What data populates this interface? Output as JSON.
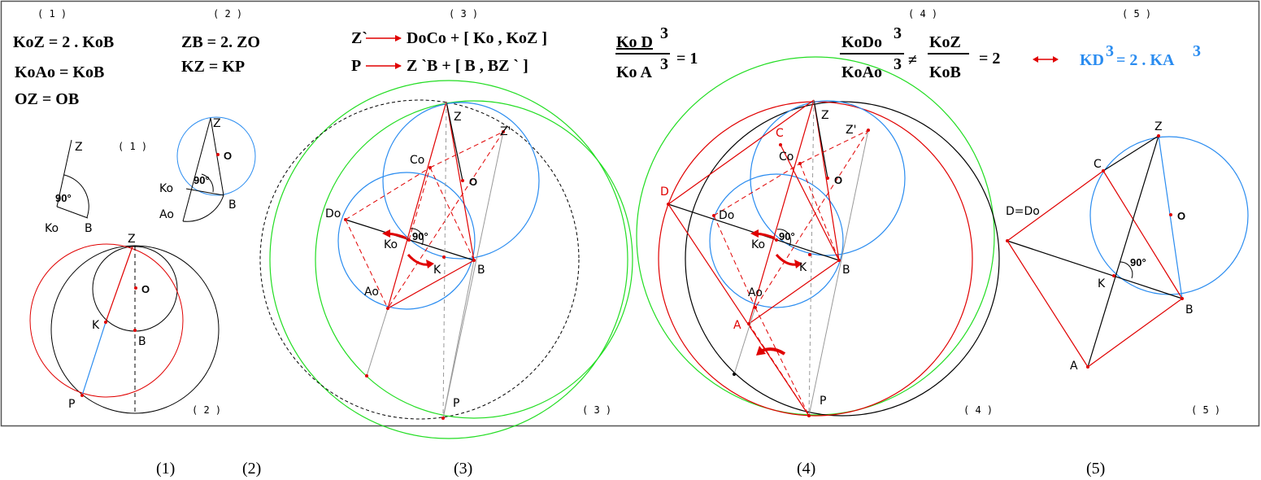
{
  "panel_numbers": {
    "p1": "( 1 )",
    "p2": "( 2 )",
    "p3": "( 3 )",
    "p4": "( 4 )",
    "p5": "( 5 )"
  },
  "equations": {
    "p1_line1": "KoZ = 2 . KoB",
    "p1_line2": "KoAo = KoB",
    "p1_line3": "OZ     = OB",
    "p2_line1": "ZB  = 2. ZO",
    "p2_line2": "KZ  = KP",
    "p3_line1_left": "Z`",
    "p3_line1_right": "DoCo + [ Ko , KoZ ]",
    "p3_line2_left": "P",
    "p3_line2_right": "Z `B  + [ B ,  BZ ` ]",
    "p3_frac_num": "Ko D",
    "p3_frac_den": "Ko A",
    "p3_exp": "3",
    "p3_result": "= 1",
    "p4_frac1_num": "KoDo",
    "p4_frac1_den": "KoAo",
    "p4_exp": "3",
    "p4_neq": "≠",
    "p4_frac2_num": "KoZ",
    "p4_frac2_den": "KoB",
    "p4_result": "= 2",
    "p5_result": "KD",
    "p5_result_mid": "= 2 . KA",
    "p5_exp": "3"
  },
  "point_labels": {
    "Z": "Z",
    "Ko": "Ko",
    "B": "B",
    "O": "O",
    "Ao": "Ao",
    "K": "K",
    "P": "P",
    "Co": "Co",
    "Do": "Do",
    "Zp": "Z'",
    "C": "C",
    "D": "D",
    "A": "A",
    "DeqDo": "D=Do",
    "right_angle": "90°"
  },
  "bottom_labels": {
    "p1": "(1)",
    "p2": "(2)",
    "p3": "(3)",
    "p4": "(4)",
    "p5": "(5)"
  },
  "colors": {
    "black": "#000000",
    "red": "#e00000",
    "blue": "#2a8cf0",
    "green": "#22dd22",
    "gray": "#999999",
    "frame": "#555555"
  }
}
